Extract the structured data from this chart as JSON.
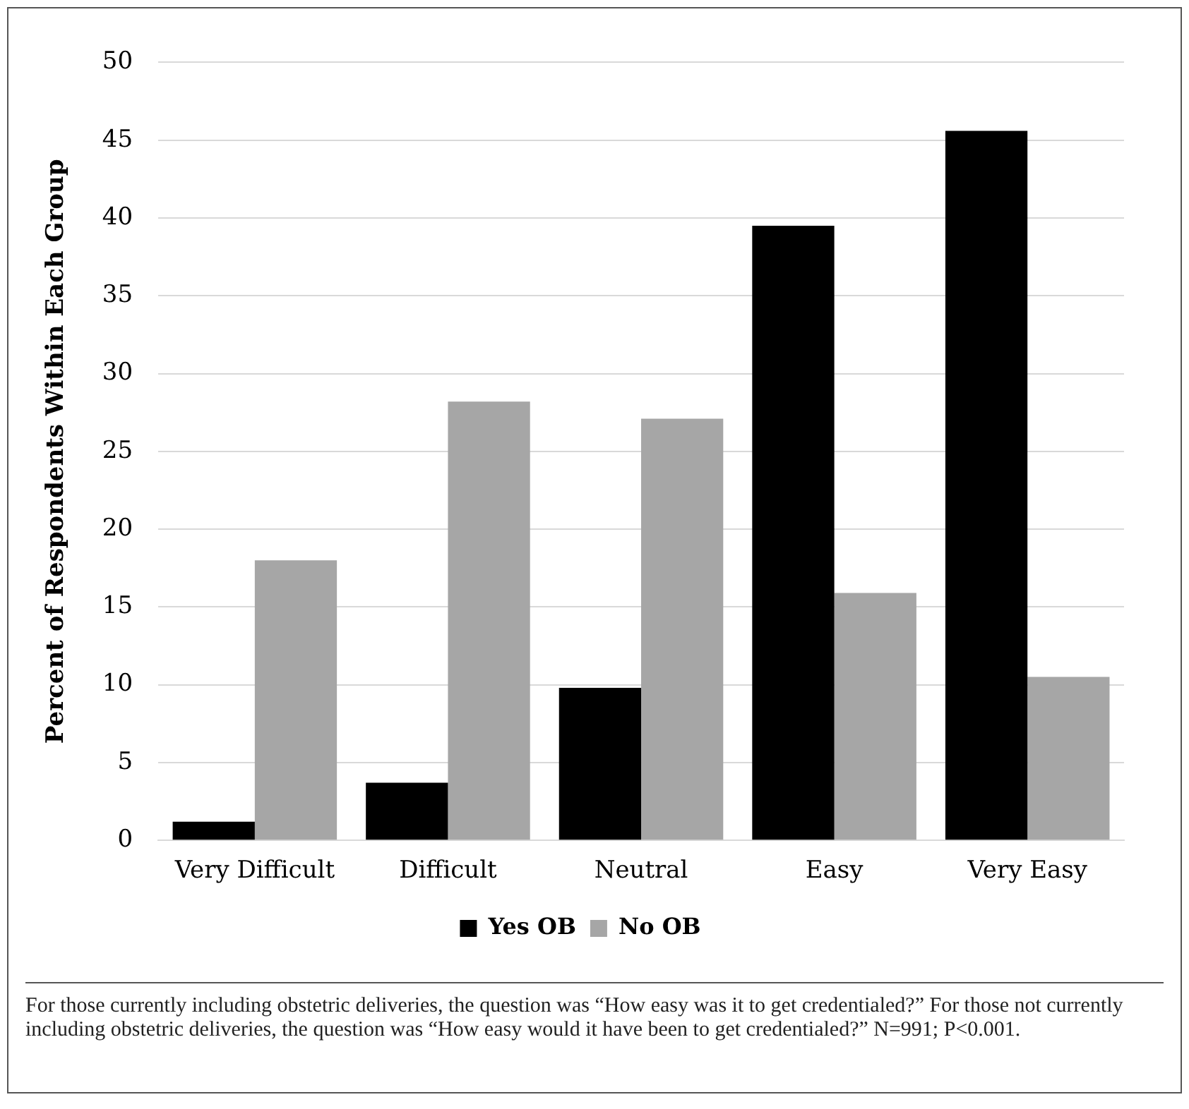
{
  "chart_data": {
    "type": "bar",
    "ylabel": "Percent of Respondents Within Each Group",
    "categories": [
      "Very Difficult",
      "Difficult",
      "Neutral",
      "Easy",
      "Very Easy"
    ],
    "series": [
      {
        "name": "Yes OB",
        "color": "#000000",
        "values": [
          1.2,
          3.7,
          9.8,
          39.5,
          45.6
        ]
      },
      {
        "name": "No OB",
        "color": "#a6a6a6",
        "values": [
          18.0,
          28.2,
          27.1,
          15.9,
          10.5
        ]
      }
    ],
    "ylim": [
      0,
      50
    ],
    "yticks": [
      0,
      5,
      10,
      15,
      20,
      25,
      30,
      35,
      40,
      45,
      50
    ],
    "grid": "y",
    "legend": "bottom",
    "annotations": [
      "For those currently including obstetric deliveries, the question was “How easy was it to get credentialed?” For those not currently including obstetric deliveries, the question was “How easy would it have been to get credentialed?” N=991; P<0.001."
    ]
  }
}
